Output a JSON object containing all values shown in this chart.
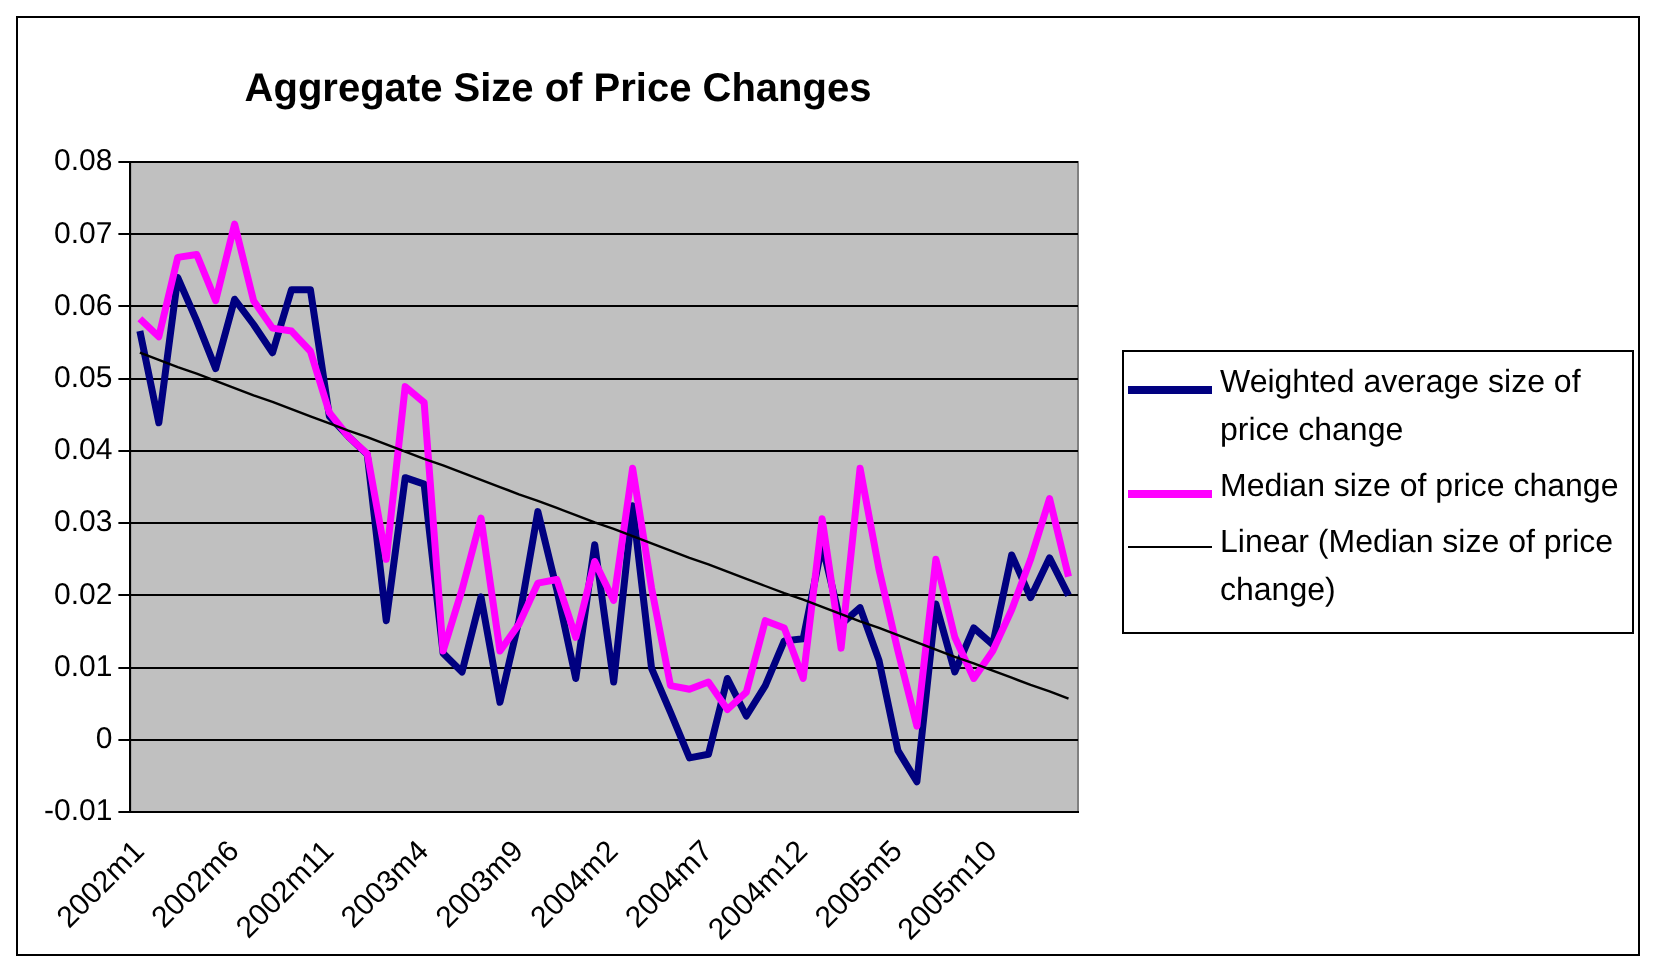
{
  "chart_data": {
    "type": "line",
    "title": "Aggregate Size of Price Changes",
    "categories": [
      "2002m1",
      null,
      null,
      null,
      null,
      "2002m6",
      null,
      null,
      null,
      null,
      "2002m11",
      null,
      null,
      null,
      null,
      "2003m4",
      null,
      null,
      null,
      null,
      "2003m9",
      null,
      null,
      null,
      null,
      "2004m2",
      null,
      null,
      null,
      null,
      "2004m7",
      null,
      null,
      null,
      null,
      "2004m12",
      null,
      null,
      null,
      null,
      "2005m5",
      null,
      null,
      null,
      null,
      "2005m10",
      null,
      null,
      null,
      null
    ],
    "series": [
      {
        "name": "Weighted average size of price change",
        "color": "#000080",
        "values": [
          0.0566,
          0.0439,
          0.064,
          0.058,
          0.0514,
          0.061,
          0.0575,
          0.0536,
          0.0623,
          0.0623,
          0.0448,
          0.042,
          0.0395,
          0.0165,
          0.0363,
          0.0354,
          0.012,
          0.0094,
          0.0198,
          0.0052,
          0.0165,
          0.0316,
          0.0208,
          0.0085,
          0.027,
          0.008,
          0.0324,
          0.0099,
          0.0038,
          -0.0025,
          -0.002,
          0.0085,
          0.0033,
          0.0075,
          0.0137,
          0.014,
          0.027,
          0.016,
          0.0183,
          0.011,
          -0.0015,
          -0.0058,
          0.0188,
          0.0094,
          0.0155,
          0.0132,
          0.0256,
          0.0197,
          0.0252,
          0.02
        ]
      },
      {
        "name": "Median size of price change",
        "color": "#ff00ff",
        "values": [
          0.0583,
          0.0558,
          0.0668,
          0.0672,
          0.0608,
          0.0714,
          0.0608,
          0.057,
          0.0566,
          0.0538,
          0.0453,
          0.042,
          0.0396,
          0.025,
          0.0489,
          0.0467,
          0.0123,
          0.0208,
          0.0307,
          0.0123,
          0.016,
          0.0217,
          0.0222,
          0.0142,
          0.0247,
          0.0193,
          0.0376,
          0.021,
          0.0075,
          0.007,
          0.008,
          0.0042,
          0.0066,
          0.0165,
          0.0155,
          0.0085,
          0.0306,
          0.0127,
          0.0376,
          0.0236,
          0.0123,
          0.0019,
          0.025,
          0.0142,
          0.0085,
          0.0123,
          0.018,
          0.025,
          0.0334,
          0.0226
        ]
      },
      {
        "name": "Linear (Median size of price change)",
        "color": "#000000",
        "type": "line",
        "values": [
          0.0536,
          0.0526,
          0.0516,
          0.0507,
          0.0497,
          0.0487,
          0.0477,
          0.0468,
          0.0458,
          0.0448,
          0.0438,
          0.0428,
          0.0419,
          0.0409,
          0.0399,
          0.0389,
          0.038,
          0.037,
          0.036,
          0.035,
          0.034,
          0.0331,
          0.0321,
          0.0311,
          0.0301,
          0.0292,
          0.0282,
          0.0272,
          0.0262,
          0.0252,
          0.0243,
          0.0233,
          0.0223,
          0.0213,
          0.0203,
          0.0194,
          0.0184,
          0.0174,
          0.0164,
          0.0155,
          0.0145,
          0.0135,
          0.0125,
          0.0115,
          0.0106,
          0.0096,
          0.0086,
          0.0076,
          0.0067,
          0.0057
        ]
      }
    ],
    "ylim": [
      -0.01,
      0.08
    ],
    "yticks": [
      -0.01,
      0,
      0.01,
      0.02,
      0.03,
      0.04,
      0.05,
      0.06,
      0.07,
      0.08
    ],
    "grid": "y",
    "legend": "right",
    "marker": "none",
    "line_style": "solid"
  }
}
